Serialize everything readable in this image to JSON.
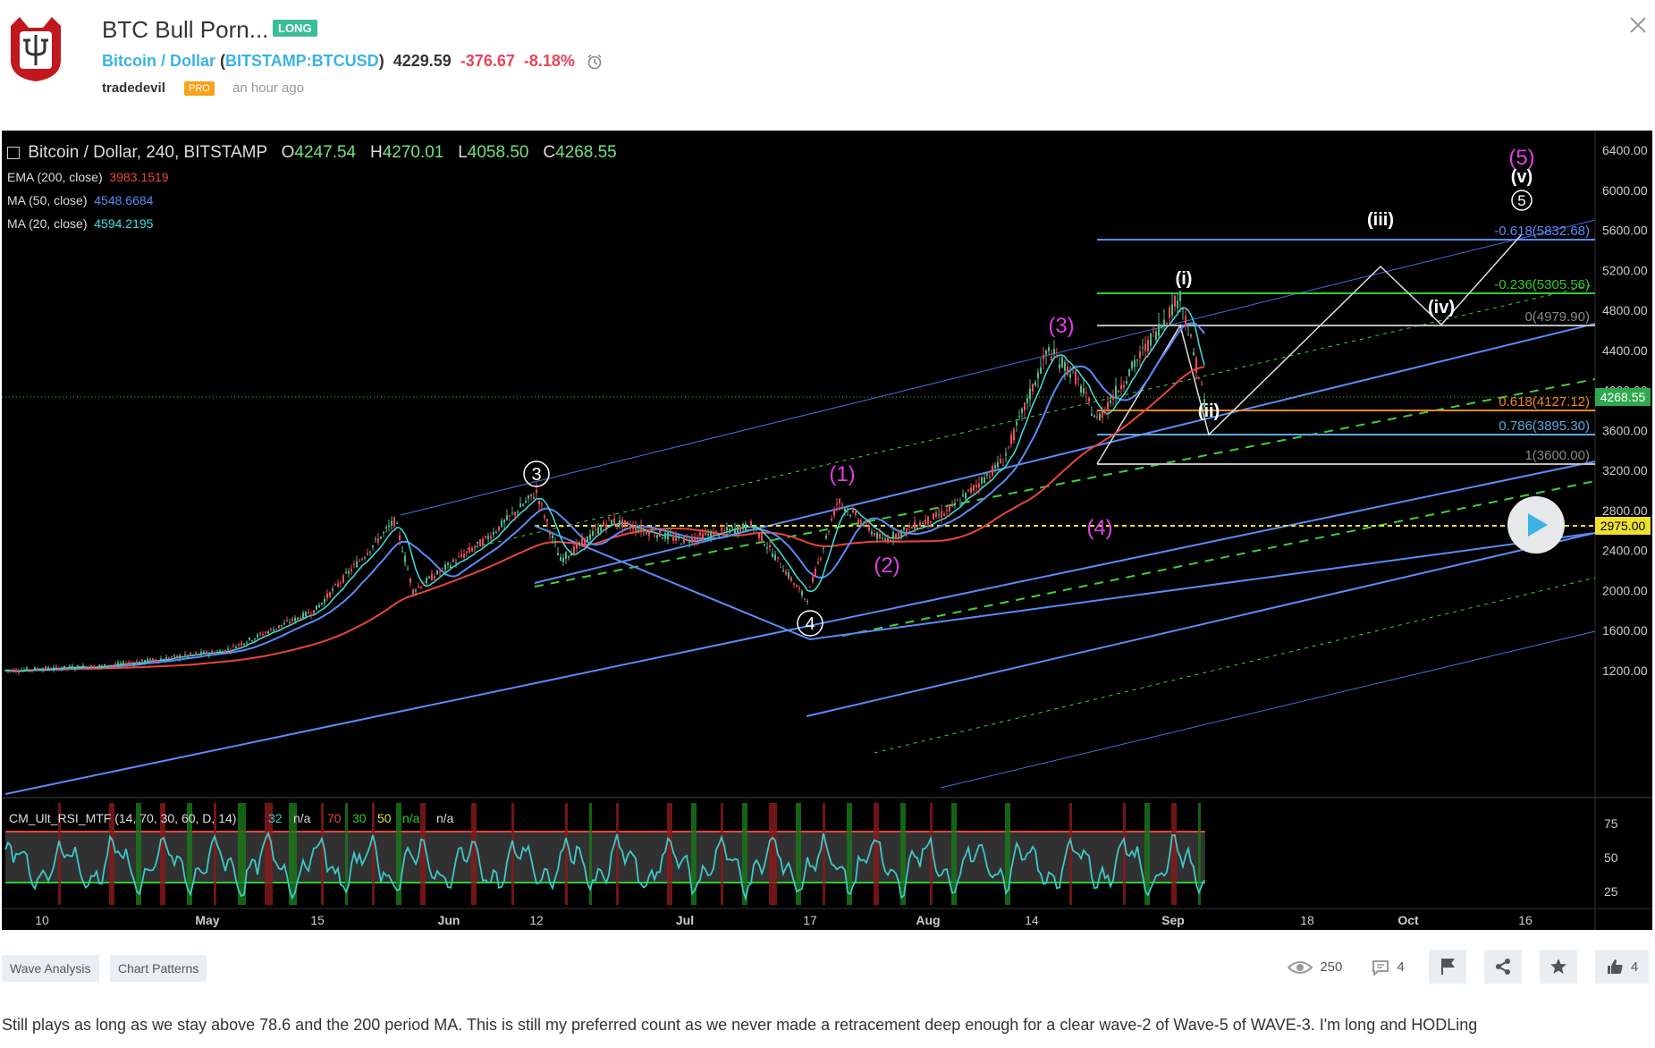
{
  "header": {
    "title": "BTC Bull Porn...",
    "direction_badge": "LONG",
    "symbol_name": "Bitcoin / Dollar",
    "symbol_open": "(",
    "symbol_ticker": "BITSTAMP:BTCUSD",
    "symbol_close": ")",
    "price": "4229.59",
    "change": "-376.67",
    "change_pct": "-8.18%",
    "author": "tradedevil",
    "pro_badge": "PRO",
    "timestamp": "an hour ago"
  },
  "chart": {
    "legend_title": "Bitcoin / Dollar, 240, BITSTAMP",
    "o_label": "O",
    "o_value": "4247.54",
    "h_label": "H",
    "h_value": "4270.01",
    "l_label": "L",
    "l_value": "4058.50",
    "c_label": "C",
    "c_value": "4268.55",
    "indicators": [
      {
        "name": "EMA (200, close)",
        "value": "3983.1519",
        "color": "#e8453c"
      },
      {
        "name": "MA (50, close)",
        "value": "4548.6684",
        "color": "#5b8bf7"
      },
      {
        "name": "MA (20, close)",
        "value": "4594.2195",
        "color": "#3fe0e0"
      }
    ],
    "y_ticks": [
      "6400.00",
      "6000.00",
      "5600.00",
      "5200.00",
      "4800.00",
      "4400.00",
      "4000.00",
      "3600.00",
      "3200.00",
      "2800.00",
      "2400.00",
      "2000.00",
      "1600.00",
      "1200.00"
    ],
    "price_tag": "4268.55",
    "level_tag": "2975.00",
    "x_ticks": [
      "10",
      "May",
      "15",
      "Jun",
      "12",
      "Jul",
      "17",
      "Aug",
      "14",
      "Sep",
      "18",
      "Oct",
      "16"
    ],
    "fib_labels": [
      "-0.618(5832.68)",
      "-0.236(5305.56)",
      "0(4979.90)",
      "0.618(4127.12)",
      "0.786(3895.30)",
      "1(3600.00)"
    ],
    "wave_labels": {
      "w3": "3",
      "w4": "4",
      "p1": "(1)",
      "p2": "(2)",
      "p3": "(3)",
      "p4": "(4)",
      "p5": "(5)",
      "r_i": "(i)",
      "r_ii": "(ii)",
      "r_iii": "(iii)",
      "r_iv": "(iv)",
      "r_v": "(v)",
      "c5": "5"
    },
    "rsi_legend": "CM_Ult_RSI_MTF (14, 70, 30, 60, D, 14)",
    "rsi_values": [
      "32",
      "n/a",
      "70",
      "30",
      "50",
      "n/a",
      "n/a"
    ],
    "rsi_ticks": [
      "75",
      "50",
      "25"
    ]
  },
  "tags": [
    "Wave Analysis",
    "Chart Patterns"
  ],
  "stats": {
    "views": "250",
    "comments": "4",
    "likes": "4"
  },
  "description": "Still plays as long as we stay above 78.6 and the 200 period MA. This is still my preferred count as we never made a retracement deep enough for a clear wave-2 of Wave-5 of WAVE-3. I'm long and HODLing",
  "colors": {
    "accent": "#3bb3e4",
    "negative": "#e8445a",
    "long": "#3cbc98",
    "pro": "#f7a21b",
    "magenta": "#e040e0"
  }
}
